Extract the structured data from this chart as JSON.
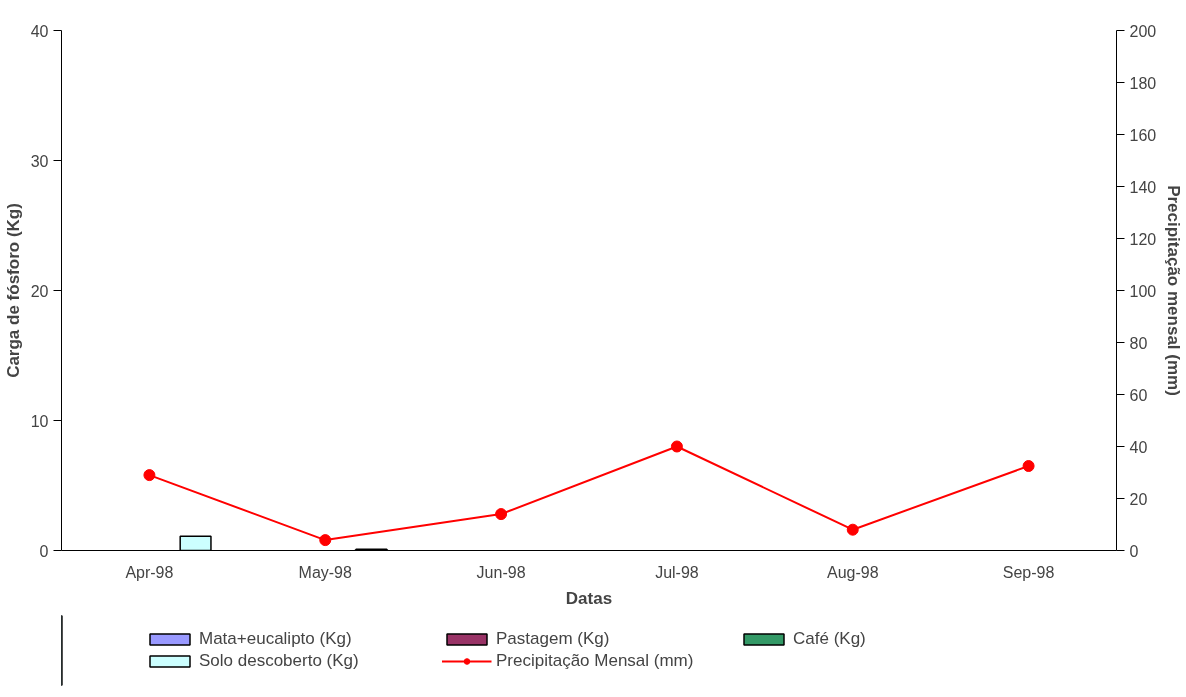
{
  "chart_data": {
    "type": "bar",
    "xlabel": "Datas",
    "ylabel": "Carga de fósforo (Kg)",
    "y2label": "Precipitação mensal (mm)",
    "categories": [
      "Apr-98",
      "May-98",
      "Jun-98",
      "Jul-98",
      "Aug-98",
      "Sep-98"
    ],
    "series": [
      {
        "name": "Mata+eucalipto (Kg)",
        "color": "#9999ff",
        "values": [
          0,
          0,
          0,
          0,
          0,
          0
        ]
      },
      {
        "name": "Pastagem (Kg)",
        "color": "#993366",
        "values": [
          0,
          0,
          0,
          0,
          0,
          0
        ]
      },
      {
        "name": "Café (Kg)",
        "color": "#339966",
        "values": [
          0,
          0,
          0,
          0,
          0,
          0
        ]
      },
      {
        "name": "Solo descoberto (Kg)",
        "color": "#ccffff",
        "values": [
          1.1,
          0.1,
          0,
          0,
          0,
          0
        ]
      },
      {
        "name": "Precipitação Mensal (mm)",
        "color": "#ff0000",
        "type": "line",
        "axis": "y2",
        "marker": "circle",
        "values": [
          29,
          4,
          14,
          40,
          8,
          32.5
        ]
      }
    ],
    "ylim": [
      0,
      40
    ],
    "yticks": [
      0,
      10,
      20,
      30,
      40
    ],
    "y2lim": [
      0,
      200
    ],
    "y2ticks": [
      0,
      20,
      40,
      60,
      80,
      100,
      120,
      140,
      160,
      180,
      200
    ],
    "grid": false,
    "legend": "bottom"
  }
}
